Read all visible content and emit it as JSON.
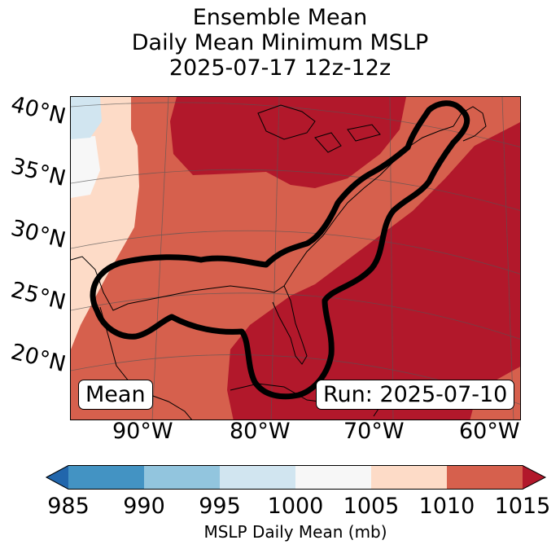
{
  "title": {
    "line1": "Ensemble Mean",
    "line2": "Daily Mean Minimum MSLP",
    "line3": "2025-07-17 12z-12z"
  },
  "map": {
    "lat_labels": [
      "40°N",
      "35°N",
      "30°N",
      "25°N",
      "20°N"
    ],
    "lon_labels": [
      "90°W",
      "80°W",
      "70°W",
      "60°W"
    ],
    "mean_box": "Mean",
    "run_box": "Run: 2025-07-10"
  },
  "colorbar": {
    "ticks": [
      "985",
      "990",
      "995",
      "1000",
      "1005",
      "1010",
      "1015"
    ],
    "label": "MSLP Daily Mean (mb)",
    "colors": {
      "under": "#2166ac",
      "985_990": "#4393c3",
      "990_995": "#92c5de",
      "995_1000": "#d1e5f0",
      "1000_1005": "#f7f7f7",
      "1005_1010": "#fddbc7",
      "1010_1015": "#d6604d",
      "over": "#b2182b"
    }
  }
}
